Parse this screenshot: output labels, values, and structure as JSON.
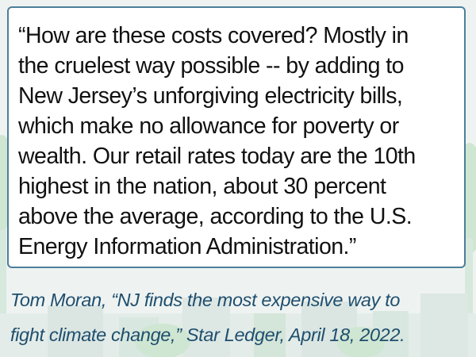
{
  "quote": {
    "text": "“How are these costs covered? Mostly in\nthe cruelest way possible -- by adding to\nNew Jersey’s unforgiving electricity bills,\nwhich make no allowance for poverty or\nwealth. Our retail rates today are the 10th\nhighest in the nation, about 30 percent\nabove the average, according to the U.S.\nEnergy Information Administration.”"
  },
  "citation": {
    "text": "Tom Moran, “NJ finds the most expensive way to\nfight climate change,” Star Ledger, April 18, 2022."
  },
  "colors": {
    "border": "#4d7f9a",
    "citation": "#1f4e6e",
    "text": "#111111",
    "background": "#eef3f1"
  }
}
